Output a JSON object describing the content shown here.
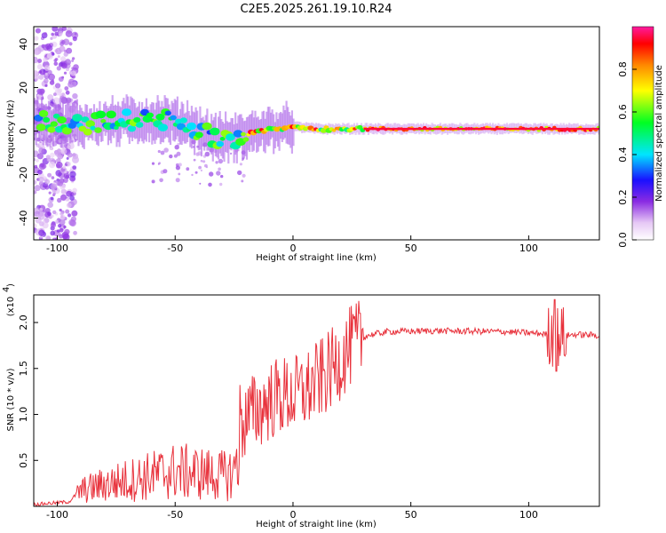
{
  "title": "C2E5.2025.261.19.10.R24",
  "chart_data": [
    {
      "type": "heatmap",
      "xlabel": "Height of straight line (km)",
      "ylabel": "Frequency (Hz)",
      "xlim": [
        -110,
        130
      ],
      "ylim": [
        -50,
        48
      ],
      "xticks": [
        -100,
        -50,
        0,
        50,
        100
      ],
      "xtick_labels": [
        "-100",
        "-50",
        "0",
        "50",
        "100"
      ],
      "yticks": [
        -40,
        -20,
        0,
        20,
        40
      ],
      "ytick_labels": [
        "-40",
        "-20",
        "0",
        "20",
        "40"
      ],
      "colorbar": {
        "label": "Normalized spectral amplitude",
        "range": [
          0,
          1
        ],
        "ticks": [
          0.0,
          0.2,
          0.4,
          0.6,
          0.8
        ],
        "tick_labels": [
          "0.0",
          "0.2",
          "0.4",
          "0.6",
          "0.8"
        ]
      },
      "ridge_center_hz": [
        [
          -108,
          5
        ],
        [
          -90,
          3
        ],
        [
          -70,
          5
        ],
        [
          -55,
          5
        ],
        [
          -45,
          3
        ],
        [
          -38,
          -1
        ],
        [
          -32,
          -3
        ],
        [
          -25,
          -3
        ],
        [
          -15,
          0
        ],
        [
          -5,
          1
        ],
        [
          0,
          2
        ],
        [
          10,
          1
        ],
        [
          20,
          1
        ],
        [
          40,
          1
        ],
        [
          60,
          1
        ],
        [
          90,
          1
        ],
        [
          110,
          1
        ],
        [
          130,
          1
        ]
      ]
    },
    {
      "type": "line",
      "xlabel": "Height of straight line (km)",
      "ylabel": "SNR (10 * v/v)",
      "scale_note": "(x10",
      "scale_exp": "4",
      "xlim": [
        -110,
        130
      ],
      "ylim": [
        0,
        2.3
      ],
      "xticks": [
        -100,
        -50,
        0,
        50,
        100
      ],
      "xtick_labels": [
        "-100",
        "-50",
        "0",
        "50",
        "100"
      ],
      "yticks": [
        0.5,
        1.0,
        1.5,
        2.0
      ],
      "ytick_labels": [
        "0.5",
        "1.0",
        "1.5",
        "2.0"
      ],
      "series": [
        {
          "name": "SNR",
          "color": "#e8323c",
          "envelope_points": [
            [
              -110,
              0.02
            ],
            [
              -95,
              0.05
            ],
            [
              -90,
              0.18
            ],
            [
              -80,
              0.25
            ],
            [
              -70,
              0.3
            ],
            [
              -60,
              0.35
            ],
            [
              -50,
              0.4
            ],
            [
              -40,
              0.38
            ],
            [
              -30,
              0.35
            ],
            [
              -25,
              0.38
            ],
            [
              -22,
              0.9
            ],
            [
              -15,
              1.05
            ],
            [
              -10,
              1.15
            ],
            [
              -5,
              1.2
            ],
            [
              0,
              1.2
            ],
            [
              5,
              1.25
            ],
            [
              10,
              1.35
            ],
            [
              15,
              1.45
            ],
            [
              20,
              1.6
            ],
            [
              25,
              1.75
            ],
            [
              30,
              1.85
            ],
            [
              40,
              1.9
            ],
            [
              60,
              1.91
            ],
            [
              90,
              1.9
            ],
            [
              105,
              1.88
            ],
            [
              113,
              1.85
            ],
            [
              120,
              1.87
            ],
            [
              130,
              1.86
            ]
          ]
        }
      ]
    }
  ]
}
